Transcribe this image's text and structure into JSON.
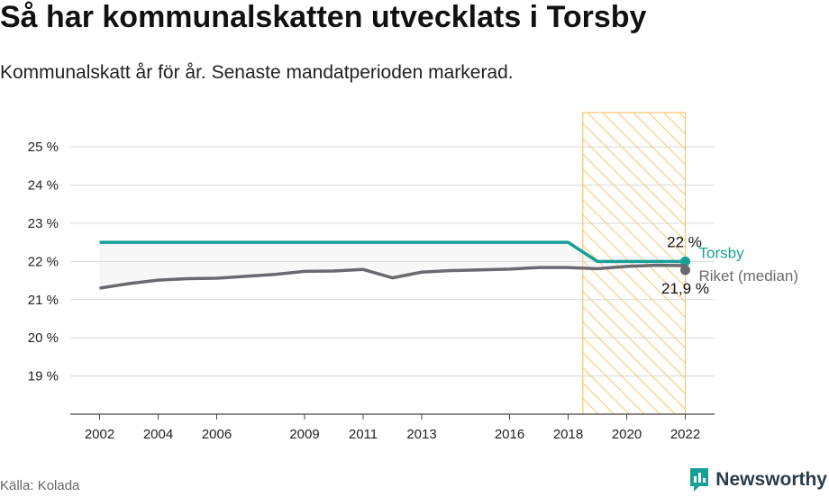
{
  "header": {
    "title": "Så har kommunalskatten utvecklats i Torsby",
    "subtitle": "Kommunalskatt år för år. Senaste mandatperioden markerad."
  },
  "footer": {
    "source": "Källa: Kolada",
    "brand": "Newsworthy",
    "brand_icon": "newsworthy-logo-icon"
  },
  "colors": {
    "torsby": "#17a096",
    "riket": "#6b6970",
    "highlight": "#f8c66c",
    "grid": "#d8d8d8"
  },
  "chart_data": {
    "type": "line",
    "ylim": [
      18,
      25.9
    ],
    "yticks": [
      19,
      20,
      21,
      22,
      23,
      24,
      25
    ],
    "ytick_labels": [
      "19 %",
      "20 %",
      "21 %",
      "22 %",
      "23 %",
      "24 %",
      "25 %"
    ],
    "xlim": [
      2001,
      2023
    ],
    "xticks": [
      2002,
      2004,
      2006,
      2009,
      2011,
      2013,
      2016,
      2018,
      2020,
      2022
    ],
    "xtick_labels": [
      "2002",
      "2004",
      "2006",
      "2009",
      "2011",
      "2013",
      "2016",
      "2018",
      "2020",
      "2022"
    ],
    "highlight_period": [
      2018.5,
      2022
    ],
    "x": [
      2002,
      2003,
      2004,
      2005,
      2006,
      2007,
      2008,
      2009,
      2010,
      2011,
      2012,
      2013,
      2014,
      2015,
      2016,
      2017,
      2018,
      2019,
      2020,
      2021,
      2022
    ],
    "series": [
      {
        "name": "Torsby",
        "values": [
          22.5,
          22.5,
          22.5,
          22.5,
          22.5,
          22.5,
          22.5,
          22.5,
          22.5,
          22.5,
          22.5,
          22.5,
          22.5,
          22.5,
          22.5,
          22.5,
          22.5,
          22.0,
          22.0,
          22.0,
          22.0
        ],
        "end_label": "22 %"
      },
      {
        "name": "Riket (median)",
        "values": [
          21.3,
          21.42,
          21.51,
          21.55,
          21.56,
          21.61,
          21.66,
          21.74,
          21.75,
          21.79,
          21.57,
          21.72,
          21.76,
          21.78,
          21.8,
          21.84,
          21.84,
          21.81,
          21.87,
          21.9,
          21.89
        ],
        "end_label": "21,9 %"
      }
    ]
  }
}
